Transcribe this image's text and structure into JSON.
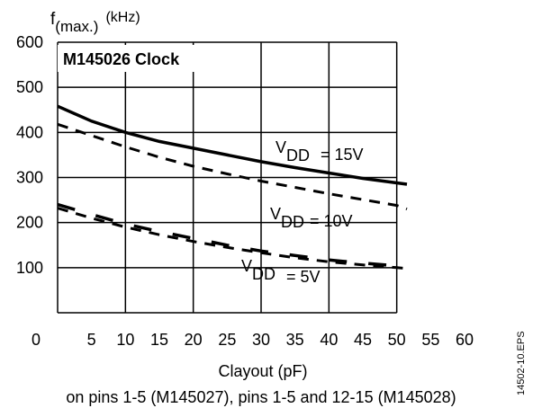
{
  "chart_data": {
    "type": "line",
    "title": "M145026 Clock",
    "ylabel_main": "f",
    "ylabel_sub": "(max.)",
    "ylabel_unit": "(kHz)",
    "xlabel": "Clayout (pF)",
    "xlabel_note": "on pins 1-5 (M145027), pins 1-5 and 12-15 (M145028)",
    "side_label": "14502-10.EPS",
    "xlim": [
      0,
      60
    ],
    "ylim": [
      0,
      600
    ],
    "x_ticks": [
      "0",
      "5",
      "10",
      "15",
      "20",
      "25",
      "30",
      "35",
      "40",
      "45",
      "50",
      "55",
      "60"
    ],
    "y_ticks": [
      "600",
      "500",
      "400",
      "300",
      "200",
      "100"
    ],
    "grid": true,
    "series": [
      {
        "name": "VDD = 15V",
        "label_main": "V",
        "label_sub": "DD",
        "label_rest": "= 15V",
        "x": [
          0,
          5,
          10,
          15,
          20,
          25,
          30,
          35,
          40,
          45,
          50,
          51.5
        ],
        "solid": [
          458,
          425,
          400,
          380,
          365,
          350,
          335,
          322,
          310,
          298,
          288,
          285
        ],
        "dashed": [
          418,
          393,
          368,
          345,
          325,
          308,
          292,
          278,
          264,
          251,
          238,
          230
        ]
      },
      {
        "name": "VDD = 10V",
        "label_main": "V",
        "label_sub": "DD",
        "label_rest": "= 10V"
      },
      {
        "name": "VDD = 5V",
        "label_main": "V",
        "label_sub": "DD",
        "label_rest": "= 5V",
        "x": [
          0,
          5,
          10,
          15,
          20,
          25,
          30,
          35,
          40,
          45,
          50,
          51.5
        ],
        "solid": [
          240,
          218,
          197,
          180,
          165,
          150,
          137,
          127,
          117,
          110,
          104,
          100
        ],
        "dashed": [
          232,
          210,
          190,
          173,
          158,
          145,
          133,
          122,
          113,
          106,
          100,
          98
        ]
      }
    ]
  }
}
